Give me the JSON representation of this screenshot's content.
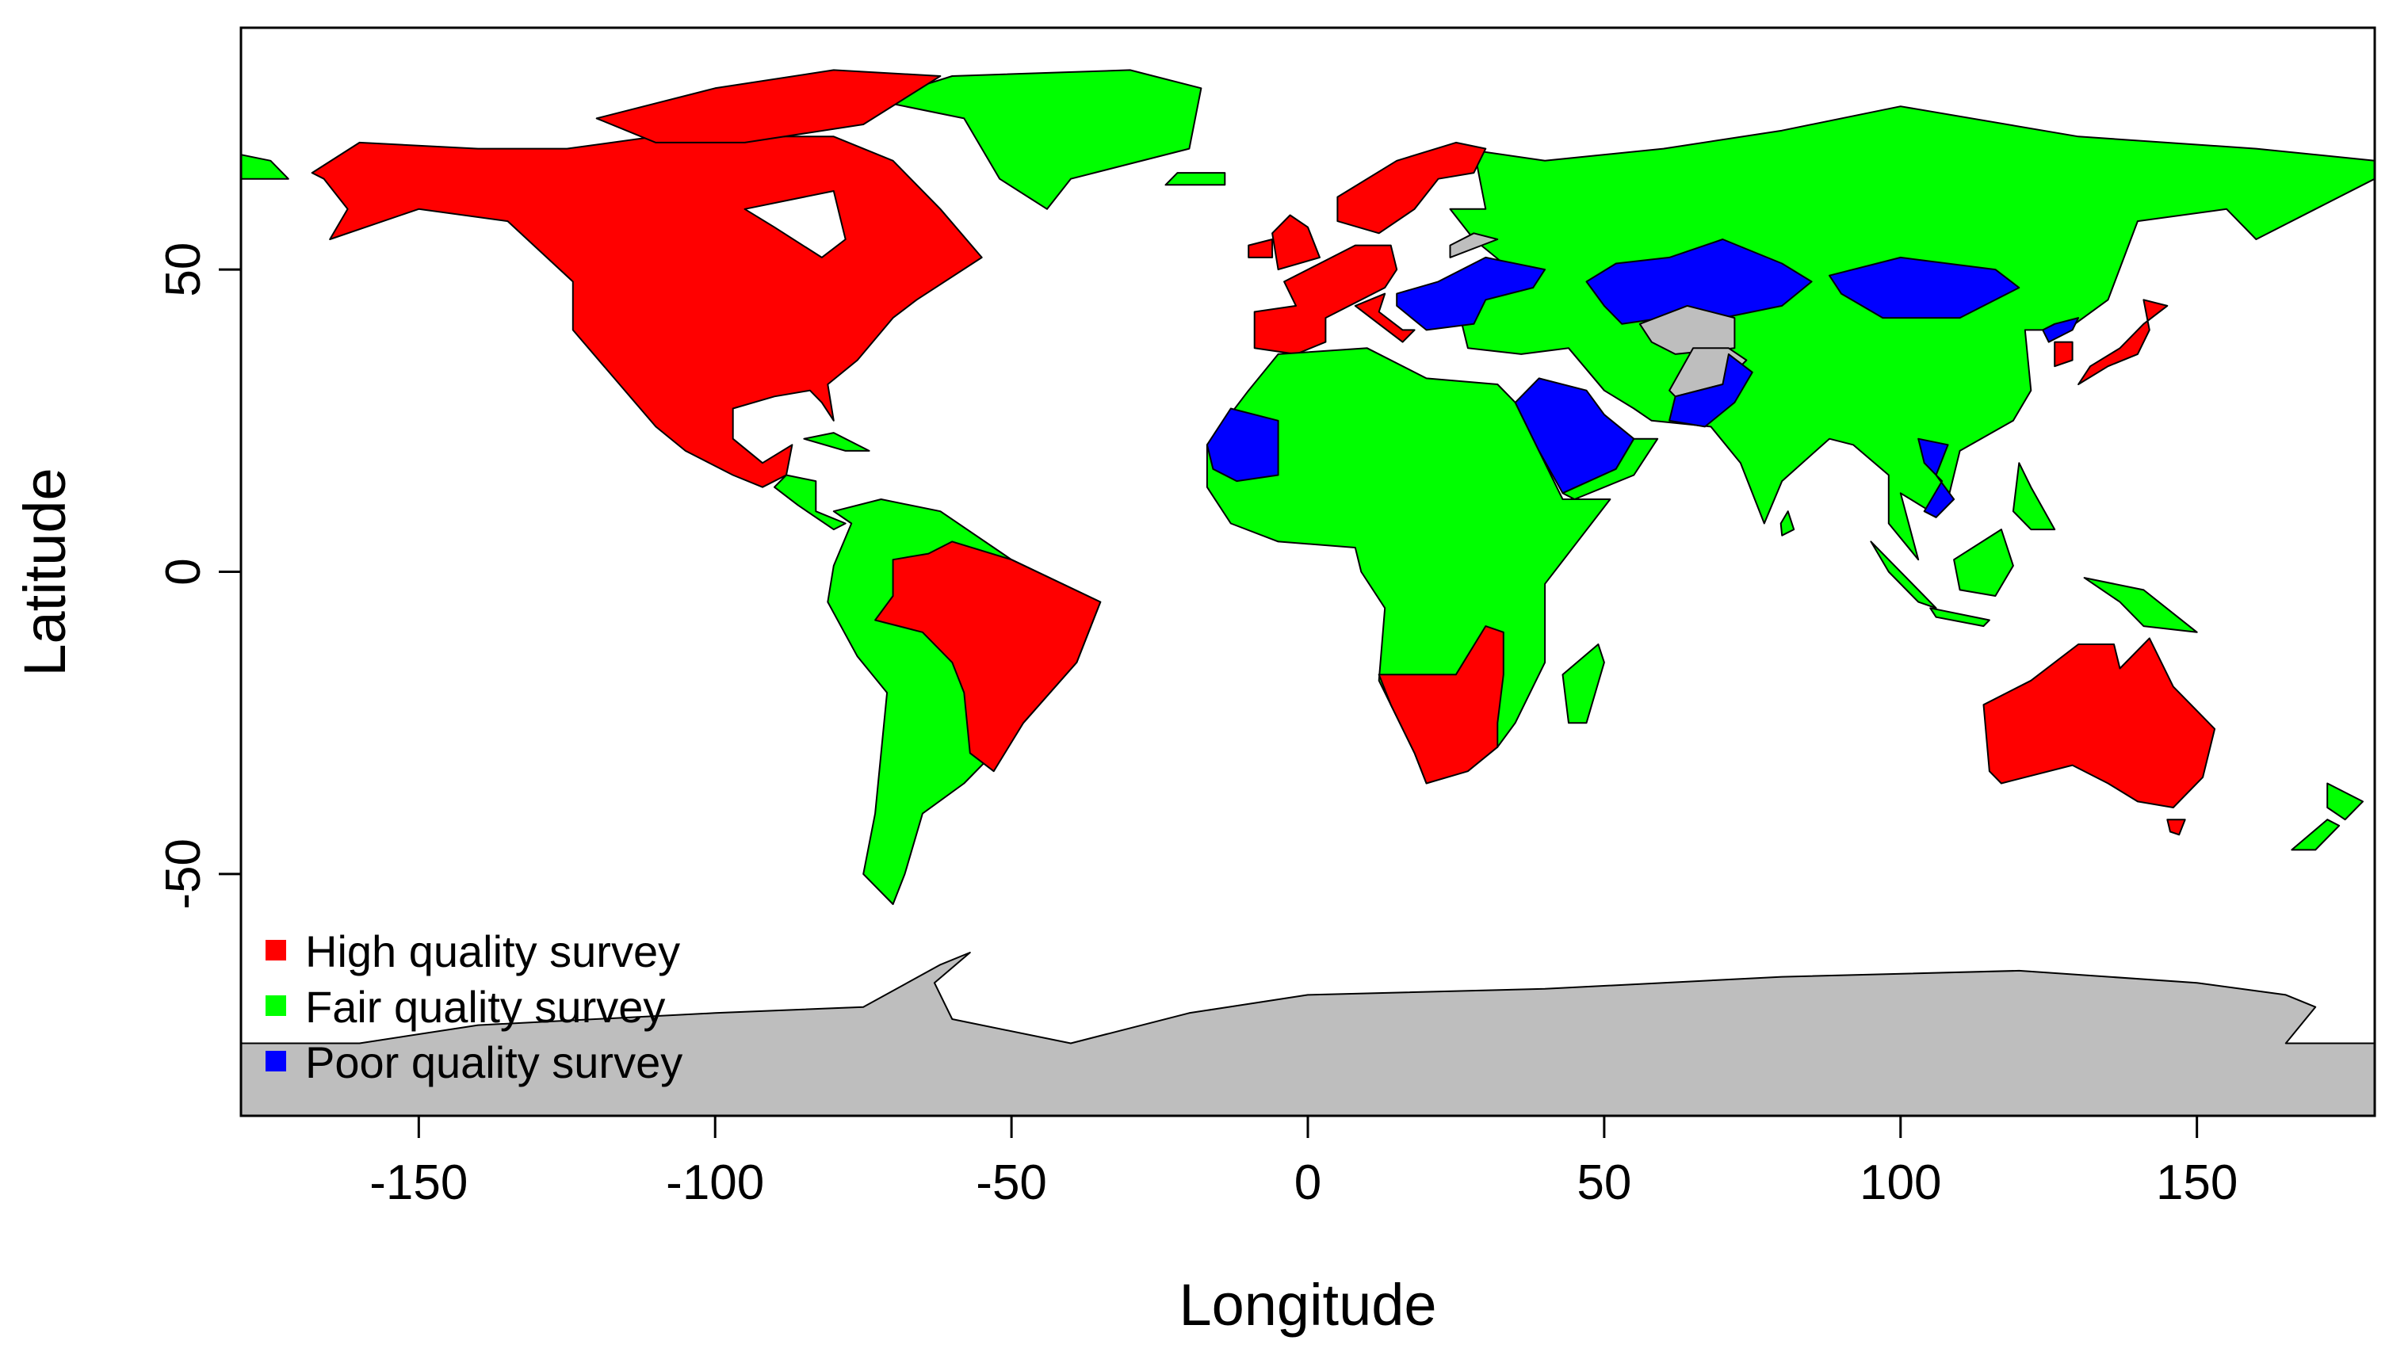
{
  "chart_data": {
    "type": "choropleth-map",
    "xlabel": "Longitude",
    "ylabel": "Latitude",
    "xlim": [
      -180,
      180
    ],
    "ylim": [
      -90,
      90
    ],
    "x_ticks": [
      -150,
      -100,
      -50,
      0,
      50,
      100,
      150
    ],
    "y_ticks": [
      -50,
      0,
      50
    ],
    "grid": false,
    "legend_placement": "bottom-left",
    "legend": [
      {
        "key": "high",
        "label": "High quality survey",
        "color": "#FF0000"
      },
      {
        "key": "fair",
        "label": "Fair quality survey",
        "color": "#00FF00"
      },
      {
        "key": "poor",
        "label": "Poor quality survey",
        "color": "#0000FF"
      }
    ],
    "no_data_color": "#BEBEBE"
  }
}
